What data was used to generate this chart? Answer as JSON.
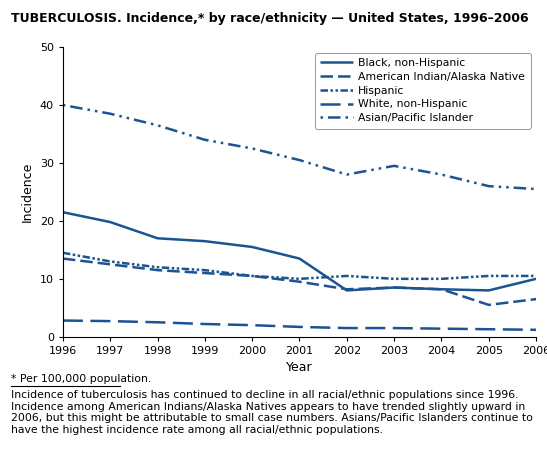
{
  "title": "TUBERCULOSIS. Incidence,* by race/ethnicity — United States, 1996–2006",
  "xlabel": "Year",
  "ylabel": "Incidence",
  "ylim": [
    0,
    50
  ],
  "xlim": [
    1996,
    2006
  ],
  "years": [
    1996,
    1997,
    1998,
    1999,
    2000,
    2001,
    2002,
    2003,
    2004,
    2005,
    2006
  ],
  "series": [
    {
      "label": "Black, non-Hispanic",
      "style_key": "solid",
      "values": [
        21.5,
        19.8,
        17.0,
        16.5,
        15.5,
        13.5,
        8.0,
        8.5,
        8.2,
        8.0,
        10.0
      ]
    },
    {
      "label": "American Indian/Alaska Native",
      "style_key": "dash_long",
      "values": [
        13.5,
        12.5,
        11.5,
        11.0,
        10.5,
        9.5,
        8.2,
        8.5,
        8.2,
        5.5,
        6.5
      ]
    },
    {
      "label": "Hispanic",
      "style_key": "dash_dot_dot",
      "values": [
        14.5,
        13.0,
        12.0,
        11.5,
        10.5,
        10.0,
        10.5,
        10.0,
        10.0,
        10.5,
        10.5
      ]
    },
    {
      "label": "White, non-Hispanic",
      "style_key": "long_dash",
      "values": [
        2.8,
        2.7,
        2.5,
        2.2,
        2.0,
        1.7,
        1.5,
        1.5,
        1.4,
        1.3,
        1.2
      ]
    },
    {
      "label": "Asian/Pacific Islander",
      "style_key": "dot_dash_dot",
      "values": [
        40.0,
        38.5,
        36.5,
        34.0,
        32.5,
        30.5,
        28.0,
        29.5,
        28.0,
        26.0,
        25.5
      ]
    }
  ],
  "footnote1": "* Per 100,000 population.",
  "footnote2": "Incidence of tuberculosis has continued to decline in all racial/ethnic populations since 1996. Incidence among American Indians/Alaska Natives appears to have trended slightly upward in 2006, but this might be attributable to small case numbers. Asians/Pacific Islanders continue to have the highest incidence rate among all racial/ethnic populations.",
  "line_color": "#1a5494",
  "bg_color": "#ffffff",
  "yticks": [
    0,
    10,
    20,
    30,
    40,
    50
  ]
}
